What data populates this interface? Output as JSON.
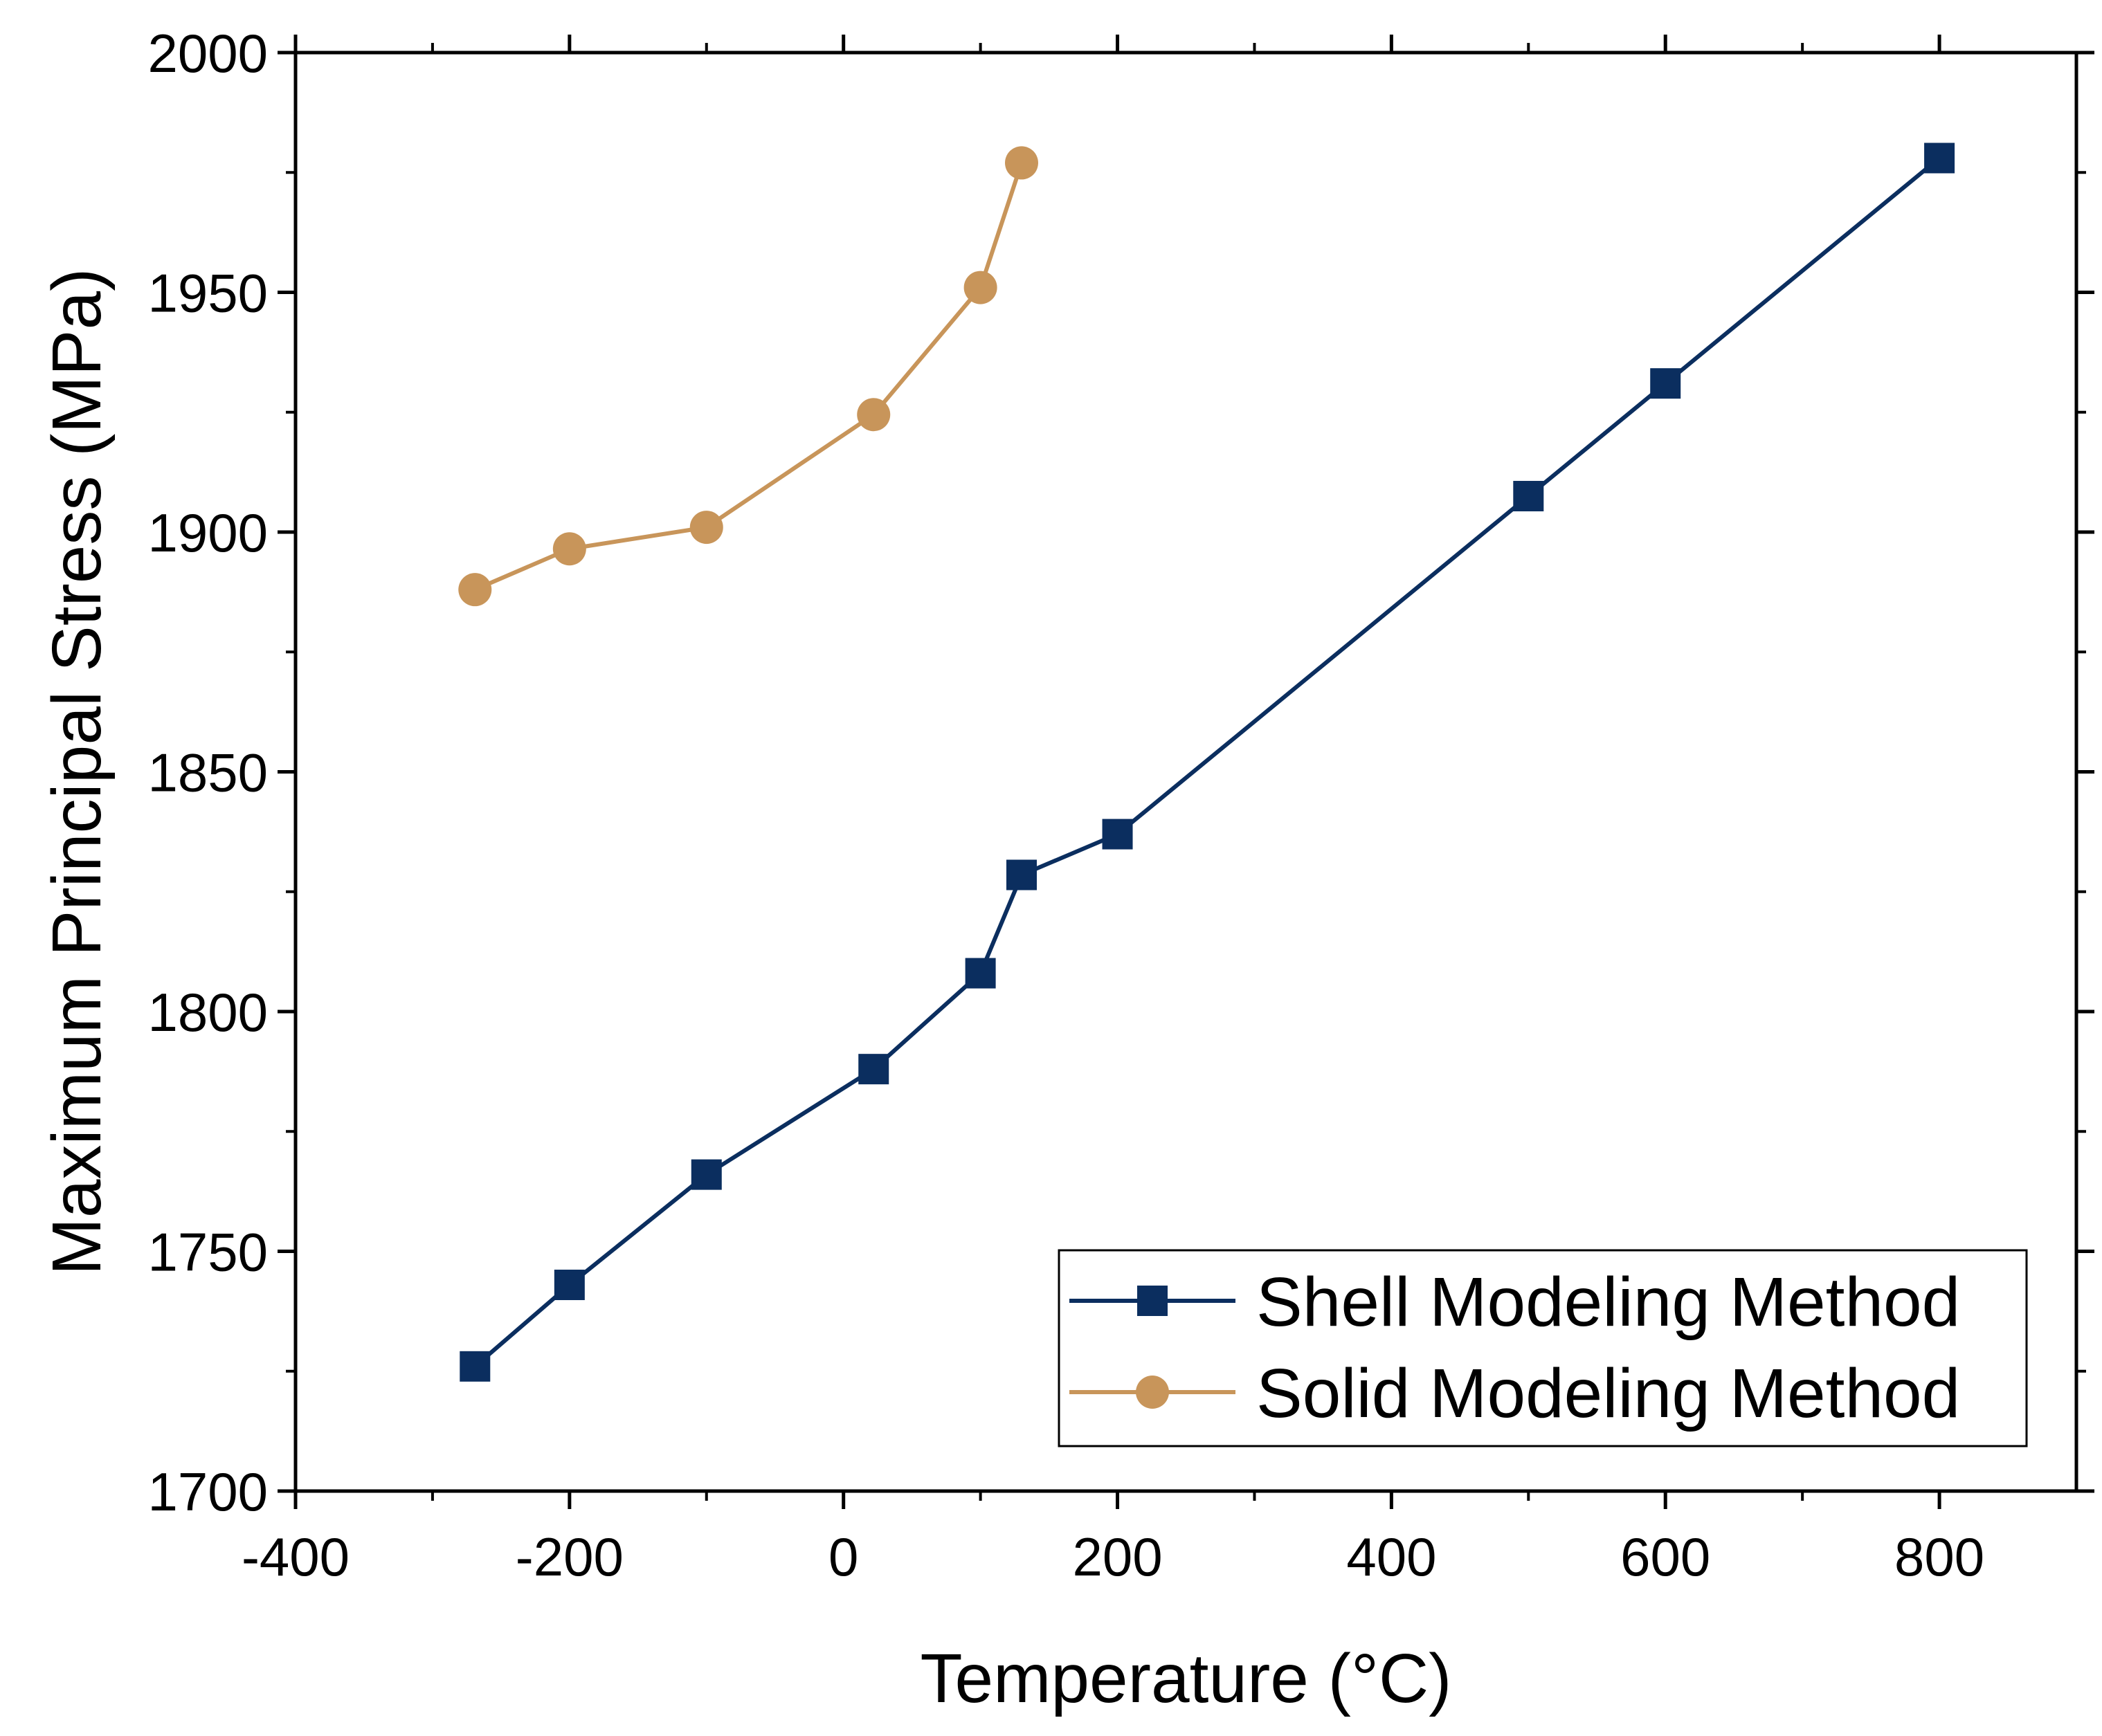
{
  "chart_data": {
    "type": "line",
    "title": "",
    "xlabel": "Temperature (°C)",
    "ylabel": "Maximum Principal Stress (MPa)",
    "xlim": [
      -400,
      900
    ],
    "ylim": [
      1700,
      2000
    ],
    "xticks": [
      -400,
      -200,
      0,
      200,
      400,
      600,
      800
    ],
    "xtick_labels": [
      "-400",
      "-200",
      "0",
      "200",
      "400",
      "600",
      "800"
    ],
    "yticks": [
      1700,
      1750,
      1800,
      1850,
      1900,
      1950,
      2000
    ],
    "ytick_labels": [
      "1700",
      "1750",
      "1800",
      "1850",
      "1900",
      "1950",
      "2000"
    ],
    "grid": false,
    "legend_position": "bottom-right",
    "series": [
      {
        "name": "Shell Modeling Method",
        "marker": "square",
        "color": "#0b2e5f",
        "x": [
          -269,
          -200,
          -100,
          22,
          100,
          130,
          200,
          500,
          600,
          800
        ],
        "values": [
          1726,
          1743,
          1766,
          1788,
          1808,
          1828.5,
          1837,
          1907.5,
          1931,
          1978
        ]
      },
      {
        "name": "Solid Modeling Method",
        "marker": "circle",
        "color": "#c8955a",
        "x": [
          -269,
          -200,
          -100,
          22,
          100,
          130
        ],
        "values": [
          1888,
          1896.5,
          1901,
          1924.5,
          1951,
          1977
        ]
      }
    ]
  }
}
